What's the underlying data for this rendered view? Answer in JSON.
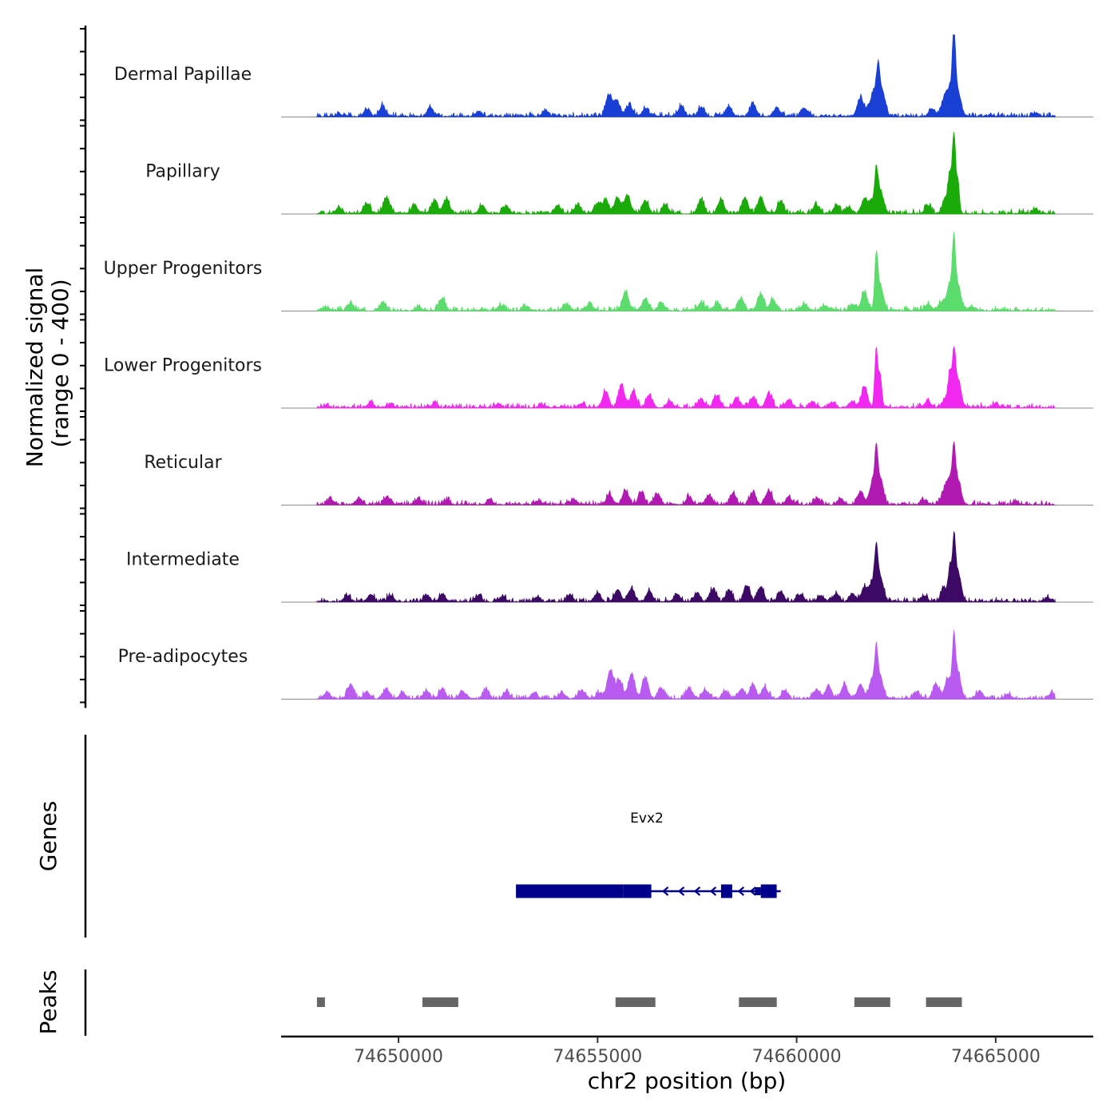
{
  "chart_data": {
    "type": "area",
    "title": "",
    "chromosome": "chr2",
    "xlabel": "chr2 position (bp)",
    "ylabel_line1": "Normalized signal",
    "ylabel_line2": "(range 0 - 400)",
    "y_range": [
      0,
      400
    ],
    "xlim": [
      74647050,
      74667450
    ],
    "x_ticks": [
      74650000,
      74655000,
      74660000,
      74665000
    ],
    "x_tick_labels": [
      "74650000",
      "74655000",
      "74660000",
      "74665000"
    ],
    "signal_start": 74647950,
    "signal_end": 74666500,
    "tracks": [
      {
        "name": "Dermal Papillae",
        "color": "#1a3fd4",
        "peaks": [
          [
            74648500,
            5
          ],
          [
            74649200,
            18
          ],
          [
            74649600,
            25
          ],
          [
            74650800,
            22
          ],
          [
            74652000,
            12
          ],
          [
            74653700,
            14
          ],
          [
            74655280,
            50
          ],
          [
            74655480,
            40
          ],
          [
            74655800,
            28
          ],
          [
            74656200,
            20
          ],
          [
            74657100,
            25
          ],
          [
            74657600,
            22
          ],
          [
            74658300,
            25
          ],
          [
            74658900,
            30
          ],
          [
            74659500,
            22
          ],
          [
            74660200,
            20
          ],
          [
            74661600,
            45
          ],
          [
            74661800,
            15
          ],
          [
            74661950,
            60
          ],
          [
            74662050,
            85
          ],
          [
            74662150,
            60
          ],
          [
            74663400,
            20
          ],
          [
            74663700,
            38
          ],
          [
            74663850,
            60
          ],
          [
            74663950,
            175
          ],
          [
            74664050,
            60
          ],
          [
            74666000,
            10
          ]
        ]
      },
      {
        "name": "Papillary",
        "color": "#1aaa0a",
        "peaks": [
          [
            74648500,
            15
          ],
          [
            74649200,
            25
          ],
          [
            74649700,
            40
          ],
          [
            74650400,
            20
          ],
          [
            74650900,
            30
          ],
          [
            74651200,
            35
          ],
          [
            74652100,
            20
          ],
          [
            74652700,
            18
          ],
          [
            74654000,
            20
          ],
          [
            74654500,
            22
          ],
          [
            74655000,
            25
          ],
          [
            74655200,
            30
          ],
          [
            74655500,
            40
          ],
          [
            74655750,
            45
          ],
          [
            74656200,
            32
          ],
          [
            74656700,
            20
          ],
          [
            74657600,
            32
          ],
          [
            74658100,
            35
          ],
          [
            74658700,
            38
          ],
          [
            74659100,
            40
          ],
          [
            74659600,
            30
          ],
          [
            74660500,
            20
          ],
          [
            74661000,
            20
          ],
          [
            74661300,
            15
          ],
          [
            74661700,
            35
          ],
          [
            74661900,
            30
          ],
          [
            74662000,
            80
          ],
          [
            74662100,
            55
          ],
          [
            74663300,
            20
          ],
          [
            74663750,
            40
          ],
          [
            74663850,
            80
          ],
          [
            74663950,
            195
          ],
          [
            74664050,
            80
          ],
          [
            74666000,
            10
          ]
        ]
      },
      {
        "name": "Upper Progenitors",
        "color": "#5cdc6c",
        "peaks": [
          [
            74648200,
            8
          ],
          [
            74648800,
            18
          ],
          [
            74649600,
            18
          ],
          [
            74650500,
            8
          ],
          [
            74651100,
            30
          ],
          [
            74652600,
            12
          ],
          [
            74653200,
            10
          ],
          [
            74654200,
            15
          ],
          [
            74654800,
            18
          ],
          [
            74655700,
            45
          ],
          [
            74656200,
            30
          ],
          [
            74656600,
            20
          ],
          [
            74657600,
            20
          ],
          [
            74658000,
            18
          ],
          [
            74658600,
            30
          ],
          [
            74659100,
            40
          ],
          [
            74659400,
            25
          ],
          [
            74660200,
            15
          ],
          [
            74660700,
            12
          ],
          [
            74661400,
            15
          ],
          [
            74661700,
            45
          ],
          [
            74662000,
            120
          ],
          [
            74662100,
            60
          ],
          [
            74663300,
            15
          ],
          [
            74663650,
            20
          ],
          [
            74663850,
            60
          ],
          [
            74663950,
            135
          ],
          [
            74664050,
            60
          ],
          [
            74664400,
            10
          ]
        ]
      },
      {
        "name": "Lower Progenitors",
        "color": "#f028f0",
        "peaks": [
          [
            74648200,
            6
          ],
          [
            74649300,
            12
          ],
          [
            74649800,
            8
          ],
          [
            74650900,
            10
          ],
          [
            74652500,
            8
          ],
          [
            74653600,
            8
          ],
          [
            74654600,
            10
          ],
          [
            74655200,
            40
          ],
          [
            74655600,
            55
          ],
          [
            74655900,
            40
          ],
          [
            74656300,
            30
          ],
          [
            74656800,
            15
          ],
          [
            74657600,
            22
          ],
          [
            74658000,
            28
          ],
          [
            74658500,
            22
          ],
          [
            74658900,
            25
          ],
          [
            74659300,
            35
          ],
          [
            74659800,
            20
          ],
          [
            74660400,
            15
          ],
          [
            74660900,
            12
          ],
          [
            74661400,
            15
          ],
          [
            74661700,
            50
          ],
          [
            74662000,
            140
          ],
          [
            74662100,
            80
          ],
          [
            74663300,
            15
          ],
          [
            74663750,
            25
          ],
          [
            74663850,
            75
          ],
          [
            74663950,
            115
          ],
          [
            74664050,
            70
          ],
          [
            74665000,
            8
          ]
        ]
      },
      {
        "name": "Reticular",
        "color": "#b01ab0",
        "peaks": [
          [
            74648300,
            12
          ],
          [
            74649000,
            15
          ],
          [
            74649700,
            18
          ],
          [
            74650500,
            15
          ],
          [
            74651200,
            12
          ],
          [
            74652300,
            10
          ],
          [
            74653500,
            10
          ],
          [
            74654400,
            12
          ],
          [
            74655300,
            25
          ],
          [
            74655700,
            35
          ],
          [
            74656100,
            30
          ],
          [
            74656500,
            25
          ],
          [
            74657300,
            18
          ],
          [
            74657800,
            22
          ],
          [
            74658400,
            28
          ],
          [
            74658900,
            30
          ],
          [
            74659300,
            35
          ],
          [
            74659800,
            18
          ],
          [
            74660500,
            15
          ],
          [
            74661100,
            15
          ],
          [
            74661600,
            30
          ],
          [
            74661900,
            50
          ],
          [
            74662000,
            100
          ],
          [
            74662100,
            60
          ],
          [
            74663200,
            12
          ],
          [
            74663700,
            30
          ],
          [
            74663850,
            60
          ],
          [
            74663950,
            100
          ],
          [
            74664050,
            60
          ],
          [
            74665500,
            8
          ]
        ]
      },
      {
        "name": "Intermediate",
        "color": "#3c0a64",
        "peaks": [
          [
            74648700,
            15
          ],
          [
            74649300,
            18
          ],
          [
            74649800,
            15
          ],
          [
            74650700,
            15
          ],
          [
            74651100,
            18
          ],
          [
            74652000,
            15
          ],
          [
            74652600,
            12
          ],
          [
            74653500,
            12
          ],
          [
            74654300,
            15
          ],
          [
            74655000,
            22
          ],
          [
            74655500,
            30
          ],
          [
            74655850,
            32
          ],
          [
            74656300,
            25
          ],
          [
            74657000,
            18
          ],
          [
            74657500,
            22
          ],
          [
            74657900,
            30
          ],
          [
            74658300,
            28
          ],
          [
            74658750,
            40
          ],
          [
            74659100,
            35
          ],
          [
            74659600,
            25
          ],
          [
            74660100,
            18
          ],
          [
            74660600,
            15
          ],
          [
            74661000,
            20
          ],
          [
            74661400,
            20
          ],
          [
            74661700,
            35
          ],
          [
            74661900,
            45
          ],
          [
            74662000,
            100
          ],
          [
            74662100,
            60
          ],
          [
            74663200,
            15
          ],
          [
            74663700,
            35
          ],
          [
            74663850,
            80
          ],
          [
            74663950,
            135
          ],
          [
            74664050,
            70
          ],
          [
            74666300,
            8
          ]
        ]
      },
      {
        "name": "Pre-adipocytes",
        "color": "#b95af0",
        "peaks": [
          [
            74648200,
            15
          ],
          [
            74648800,
            35
          ],
          [
            74649200,
            18
          ],
          [
            74649700,
            20
          ],
          [
            74650100,
            15
          ],
          [
            74650700,
            18
          ],
          [
            74651100,
            25
          ],
          [
            74651600,
            20
          ],
          [
            74652200,
            22
          ],
          [
            74652700,
            18
          ],
          [
            74653400,
            15
          ],
          [
            74654100,
            15
          ],
          [
            74654600,
            20
          ],
          [
            74655050,
            15
          ],
          [
            74655320,
            70
          ],
          [
            74655550,
            45
          ],
          [
            74655850,
            60
          ],
          [
            74656200,
            50
          ],
          [
            74656600,
            25
          ],
          [
            74657300,
            25
          ],
          [
            74657700,
            22
          ],
          [
            74658200,
            18
          ],
          [
            74658600,
            22
          ],
          [
            74658900,
            35
          ],
          [
            74659200,
            28
          ],
          [
            74659700,
            20
          ],
          [
            74660500,
            22
          ],
          [
            74660800,
            30
          ],
          [
            74661200,
            35
          ],
          [
            74661600,
            35
          ],
          [
            74661900,
            45
          ],
          [
            74662000,
            90
          ],
          [
            74662100,
            50
          ],
          [
            74663000,
            15
          ],
          [
            74663500,
            35
          ],
          [
            74663800,
            50
          ],
          [
            74663950,
            130
          ],
          [
            74664050,
            60
          ],
          [
            74664600,
            20
          ],
          [
            74665300,
            12
          ],
          [
            74666400,
            12
          ]
        ]
      }
    ],
    "genes_track": {
      "title": "Genes",
      "gene_name": "Evx2",
      "strand": "-",
      "line_start": 74653000,
      "line_end": 74659600,
      "exons": [
        {
          "start": 74652950,
          "end": 74655650,
          "kind": "coding"
        },
        {
          "start": 74655650,
          "end": 74656350,
          "kind": "coding"
        },
        {
          "start": 74658100,
          "end": 74658380,
          "kind": "coding"
        },
        {
          "start": 74658950,
          "end": 74659100,
          "kind": "utr"
        },
        {
          "start": 74659100,
          "end": 74659500,
          "kind": "coding"
        }
      ],
      "arrows": [
        74656650,
        74657050,
        74657450,
        74657850,
        74658550,
        74658850
      ],
      "color": "#00008b"
    },
    "peaks_track": {
      "title": "Peaks",
      "color": "#666666",
      "regions": [
        [
          74647950,
          74648150
        ],
        [
          74650600,
          74651500
        ],
        [
          74655450,
          74656450
        ],
        [
          74658550,
          74659500
        ],
        [
          74661450,
          74662350
        ],
        [
          74663250,
          74664150
        ]
      ]
    }
  }
}
